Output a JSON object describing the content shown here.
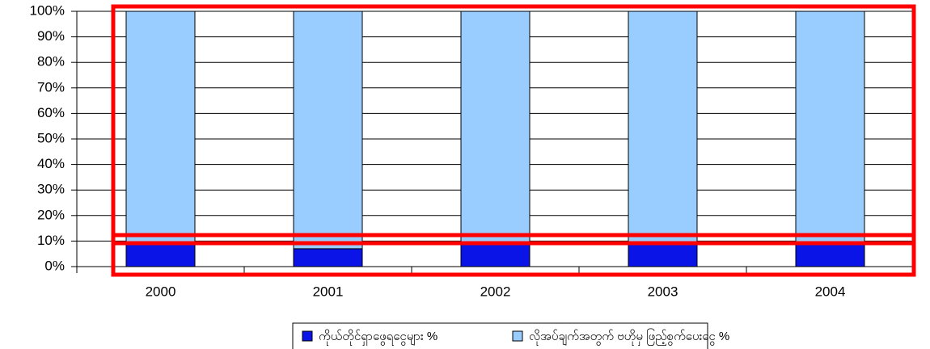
{
  "chart_data": {
    "type": "bar",
    "stacked": true,
    "categories": [
      "2000",
      "2001",
      "2002",
      "2003",
      "2004"
    ],
    "series": [
      {
        "name": "ကိုယ်တိုင်ရှာဖွေရငွေများ %",
        "color": "#0a14e6",
        "values": [
          9,
          7,
          9,
          9,
          9
        ]
      },
      {
        "name": "လိုအပ်ချက်အတွက် ဗဟိုမှ ဖြည့်စွက်ပေးငွေ %",
        "color": "#99ccff",
        "values": [
          91,
          93,
          91,
          91,
          91
        ]
      }
    ],
    "ylim": [
      0,
      100
    ],
    "yticks": [
      {
        "value": 0,
        "label": "0%"
      },
      {
        "value": 10,
        "label": "10%"
      },
      {
        "value": 20,
        "label": "20%"
      },
      {
        "value": 30,
        "label": "30%"
      },
      {
        "value": 40,
        "label": "40%"
      },
      {
        "value": 50,
        "label": "50%"
      },
      {
        "value": 60,
        "label": "60%"
      },
      {
        "value": 70,
        "label": "70%"
      },
      {
        "value": 80,
        "label": "80%"
      },
      {
        "value": 90,
        "label": "90%"
      },
      {
        "value": 100,
        "label": "100%"
      }
    ],
    "grid": true,
    "legend": "bottom"
  }
}
